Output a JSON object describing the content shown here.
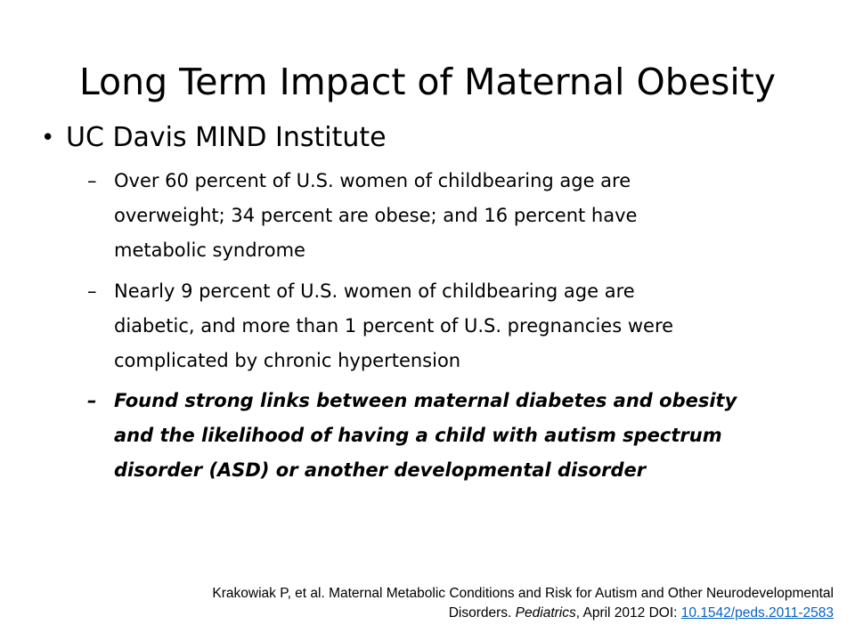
{
  "slide": {
    "title": "Long Term Impact of Maternal Obesity",
    "bullet": {
      "marker": "•",
      "text": "UC Davis MIND Institute"
    },
    "sub_marker": "–",
    "subs": [
      {
        "lines": [
          "Over 60 percent of U.S. women of childbearing age are",
          "overweight; 34 percent are obese; and 16 percent have",
          "metabolic syndrome"
        ]
      },
      {
        "lines": [
          "Nearly 9 percent of U.S. women of childbearing age are",
          "diabetic, and more than 1 percent of U.S. pregnancies were",
          "complicated by chronic hypertension"
        ]
      },
      {
        "lines": [
          "Found strong links between maternal diabetes and obesity",
          "and the likelihood of having a child with autism spectrum",
          "disorder (ASD) or another developmental disorder"
        ]
      }
    ],
    "citation": {
      "line1": "Krakowiak P, et al. Maternal Metabolic Conditions and Risk for Autism and Other Neurodevelopmental",
      "line2_prefix": "Disorders. ",
      "journal": "Pediatrics",
      "line2_middle": ", April 2012 DOI: ",
      "doi": "10.1542/peds.2011-2583"
    }
  }
}
